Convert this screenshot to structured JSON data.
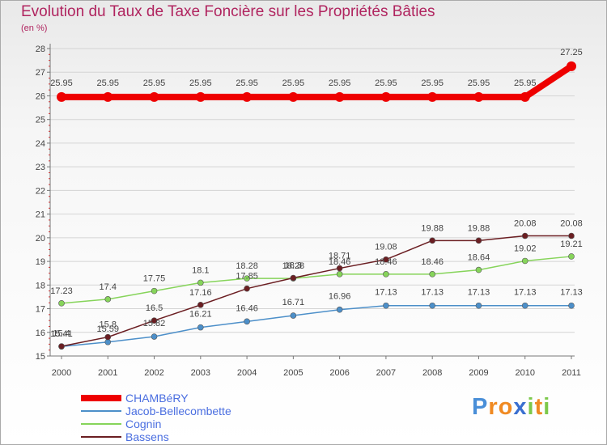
{
  "header": {
    "title": "Evolution du Taux de Taxe Foncière sur les Propriétés Bâties",
    "unit": "(en %)"
  },
  "chart_data": {
    "type": "line",
    "title": "Evolution du Taux de Taxe Foncière sur les Propriétés Bâties",
    "ylabel": "(en %)",
    "xlabel": "",
    "categories": [
      "2000",
      "2001",
      "2002",
      "2003",
      "2004",
      "2005",
      "2006",
      "2007",
      "2008",
      "2009",
      "2010",
      "2011"
    ],
    "ylim": [
      15,
      28
    ],
    "yticks": [
      15,
      16,
      17,
      18,
      19,
      20,
      21,
      22,
      23,
      24,
      25,
      26,
      27,
      28
    ],
    "legend_position": "bottom-left",
    "series": [
      {
        "name": "CHAMBéRY",
        "color": "#ee0000",
        "values": [
          25.95,
          25.95,
          25.95,
          25.95,
          25.95,
          25.95,
          25.95,
          25.95,
          25.95,
          25.95,
          25.95,
          27.25
        ],
        "labels": [
          "25.95",
          "25.95",
          "25.95",
          "25.95",
          "25.95",
          "25.95",
          "25.95",
          "25.95",
          "25.95",
          "25.95",
          "25.95",
          "27.25"
        ]
      },
      {
        "name": "Jacob-Bellecombette",
        "color": "#4c8fc9",
        "values": [
          15.4,
          15.59,
          15.82,
          16.21,
          16.46,
          16.71,
          16.96,
          17.13,
          17.13,
          17.13,
          17.13,
          17.13
        ],
        "labels": [
          "15.4",
          "15.59",
          "15.82",
          "16.21",
          "16.46",
          "16.71",
          "16.96",
          "17.13",
          "17.13",
          "17.13",
          "17.13",
          "17.13"
        ]
      },
      {
        "name": "Cognin",
        "color": "#86d45a",
        "values": [
          17.23,
          17.4,
          17.75,
          18.1,
          18.28,
          18.28,
          18.46,
          18.46,
          18.46,
          18.64,
          19.02,
          19.21
        ],
        "labels": [
          "17.23",
          "17.4",
          "17.75",
          "18.1",
          "18.28",
          "18.28",
          "18.46",
          "18.46",
          "18.46",
          "18.64",
          "19.02",
          "19.21"
        ]
      },
      {
        "name": "Bassens",
        "color": "#6b1e22",
        "values": [
          15.41,
          15.8,
          16.5,
          17.16,
          17.85,
          18.3,
          18.71,
          19.08,
          19.88,
          19.88,
          20.08,
          20.08
        ],
        "labels": [
          "15.41",
          "15.8",
          "16.5",
          "17.16",
          "17.85",
          "18.3",
          "18.71",
          "19.08",
          "19.88",
          "19.88",
          "20.08",
          "20.08"
        ]
      }
    ]
  },
  "logo": {
    "letters": [
      "P",
      "r",
      "o",
      "x",
      "i",
      "t",
      "i"
    ],
    "colors": [
      "#4a8fd8",
      "#f08a22",
      "#f08a22",
      "#3a6fd0",
      "#7cc84a",
      "#f08a22",
      "#7cc84a"
    ]
  }
}
